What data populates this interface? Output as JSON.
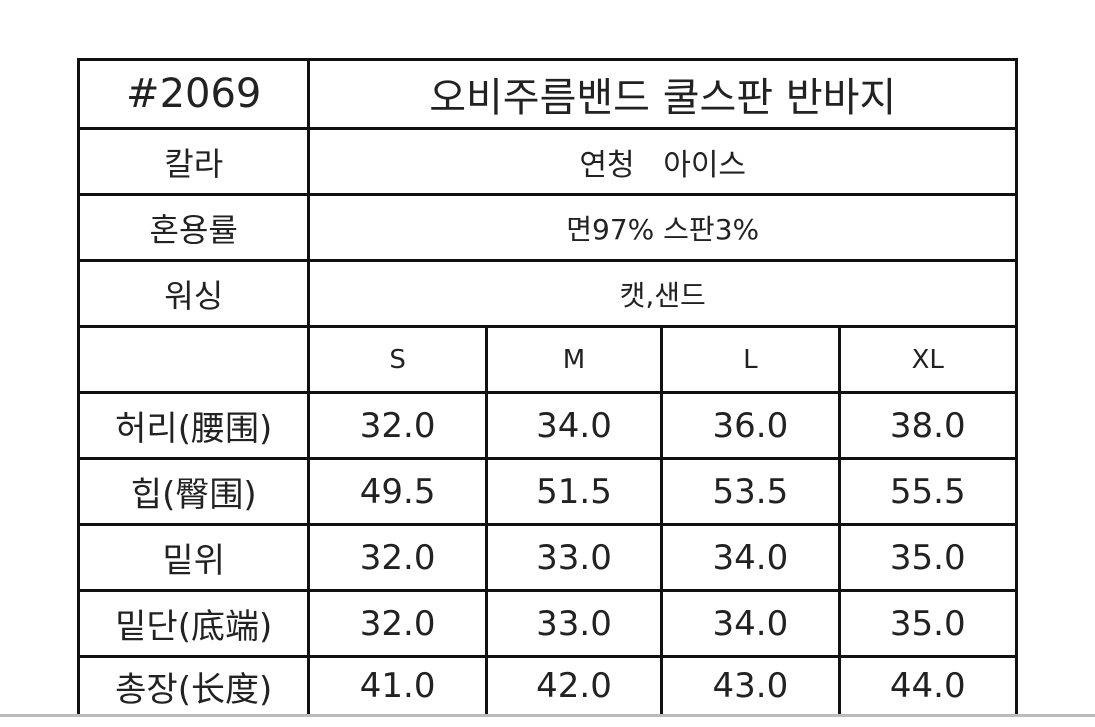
{
  "header": {
    "code": "#2069",
    "title": "오비주름밴드 쿨스판 반바지"
  },
  "info": [
    {
      "label": "칼라",
      "value": "연청   아이스"
    },
    {
      "label": "혼용률",
      "value": "면97% 스판3%"
    },
    {
      "label": "워싱",
      "value": "캣,샌드"
    }
  ],
  "sizes": [
    "S",
    "M",
    "L",
    "XL"
  ],
  "measurements": [
    {
      "label": "허리(腰围)",
      "values": [
        "32.0",
        "34.0",
        "36.0",
        "38.0"
      ]
    },
    {
      "label": "힙(臀围)",
      "values": [
        "49.5",
        "51.5",
        "53.5",
        "55.5"
      ]
    },
    {
      "label": "밑위",
      "values": [
        "32.0",
        "33.0",
        "34.0",
        "35.0"
      ]
    },
    {
      "label": "밑단(底端)",
      "values": [
        "32.0",
        "33.0",
        "34.0",
        "35.0"
      ]
    },
    {
      "label": "총장(长度)",
      "values": [
        "41.0",
        "42.0",
        "43.0",
        "44.0"
      ]
    }
  ]
}
